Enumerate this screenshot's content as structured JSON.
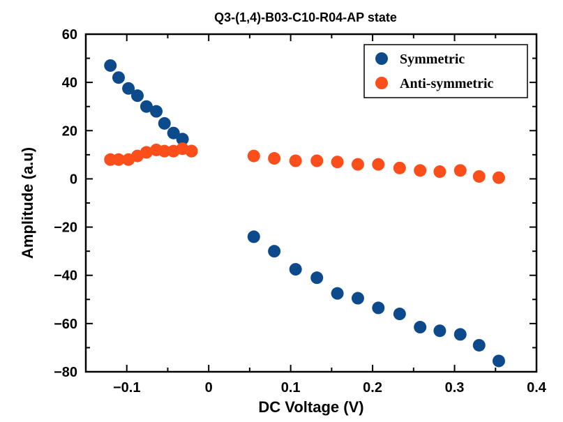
{
  "chart_data": {
    "type": "scatter",
    "title": "Q3-(1,4)-B03-C10-R04-AP state",
    "xlabel": "DC Voltage (V)",
    "ylabel": "Amplitude (a.u)",
    "xlim": [
      -0.15,
      0.4
    ],
    "ylim": [
      -80,
      60
    ],
    "x_ticks": [
      -0.1,
      0,
      0.1,
      0.2,
      0.3,
      0.4
    ],
    "x_tick_labels": [
      "−0.1",
      "0",
      "0.1",
      "0.2",
      "0.3",
      "0.4"
    ],
    "y_ticks": [
      -80,
      -60,
      -40,
      -20,
      0,
      20,
      40,
      60
    ],
    "y_tick_labels": [
      "−80",
      "−60",
      "−40",
      "−20",
      "0",
      "20",
      "40",
      "60"
    ],
    "grid": false,
    "legend_position": "top-right",
    "series": [
      {
        "name": "Symmetric",
        "color": "#0d4a8b",
        "points": [
          [
            -0.12,
            47
          ],
          [
            -0.11,
            42
          ],
          [
            -0.098,
            37.5
          ],
          [
            -0.087,
            34.5
          ],
          [
            -0.076,
            30
          ],
          [
            -0.064,
            28
          ],
          [
            -0.054,
            23
          ],
          [
            -0.043,
            19
          ],
          [
            -0.032,
            16.5
          ],
          [
            -0.021,
            11.5
          ],
          [
            0.055,
            -24
          ],
          [
            0.08,
            -30
          ],
          [
            0.106,
            -37.5
          ],
          [
            0.132,
            -41
          ],
          [
            0.157,
            -47.5
          ],
          [
            0.182,
            -49.5
          ],
          [
            0.207,
            -53.5
          ],
          [
            0.233,
            -56
          ],
          [
            0.258,
            -61.5
          ],
          [
            0.282,
            -63
          ],
          [
            0.307,
            -64.5
          ],
          [
            0.33,
            -69
          ],
          [
            0.354,
            -75.5
          ]
        ]
      },
      {
        "name": "Anti-symmetric",
        "color": "#fc4e1a",
        "points": [
          [
            -0.12,
            8
          ],
          [
            -0.11,
            8
          ],
          [
            -0.098,
            8
          ],
          [
            -0.087,
            9.5
          ],
          [
            -0.076,
            11
          ],
          [
            -0.064,
            12
          ],
          [
            -0.054,
            11.5
          ],
          [
            -0.043,
            11.5
          ],
          [
            -0.032,
            12.5
          ],
          [
            -0.021,
            11.5
          ],
          [
            0.055,
            9.5
          ],
          [
            0.08,
            8.5
          ],
          [
            0.106,
            7.5
          ],
          [
            0.132,
            7.5
          ],
          [
            0.157,
            7
          ],
          [
            0.182,
            6
          ],
          [
            0.207,
            6
          ],
          [
            0.233,
            4.5
          ],
          [
            0.258,
            3.5
          ],
          [
            0.282,
            3
          ],
          [
            0.307,
            3.5
          ],
          [
            0.33,
            1
          ],
          [
            0.354,
            0.5
          ]
        ]
      }
    ]
  }
}
